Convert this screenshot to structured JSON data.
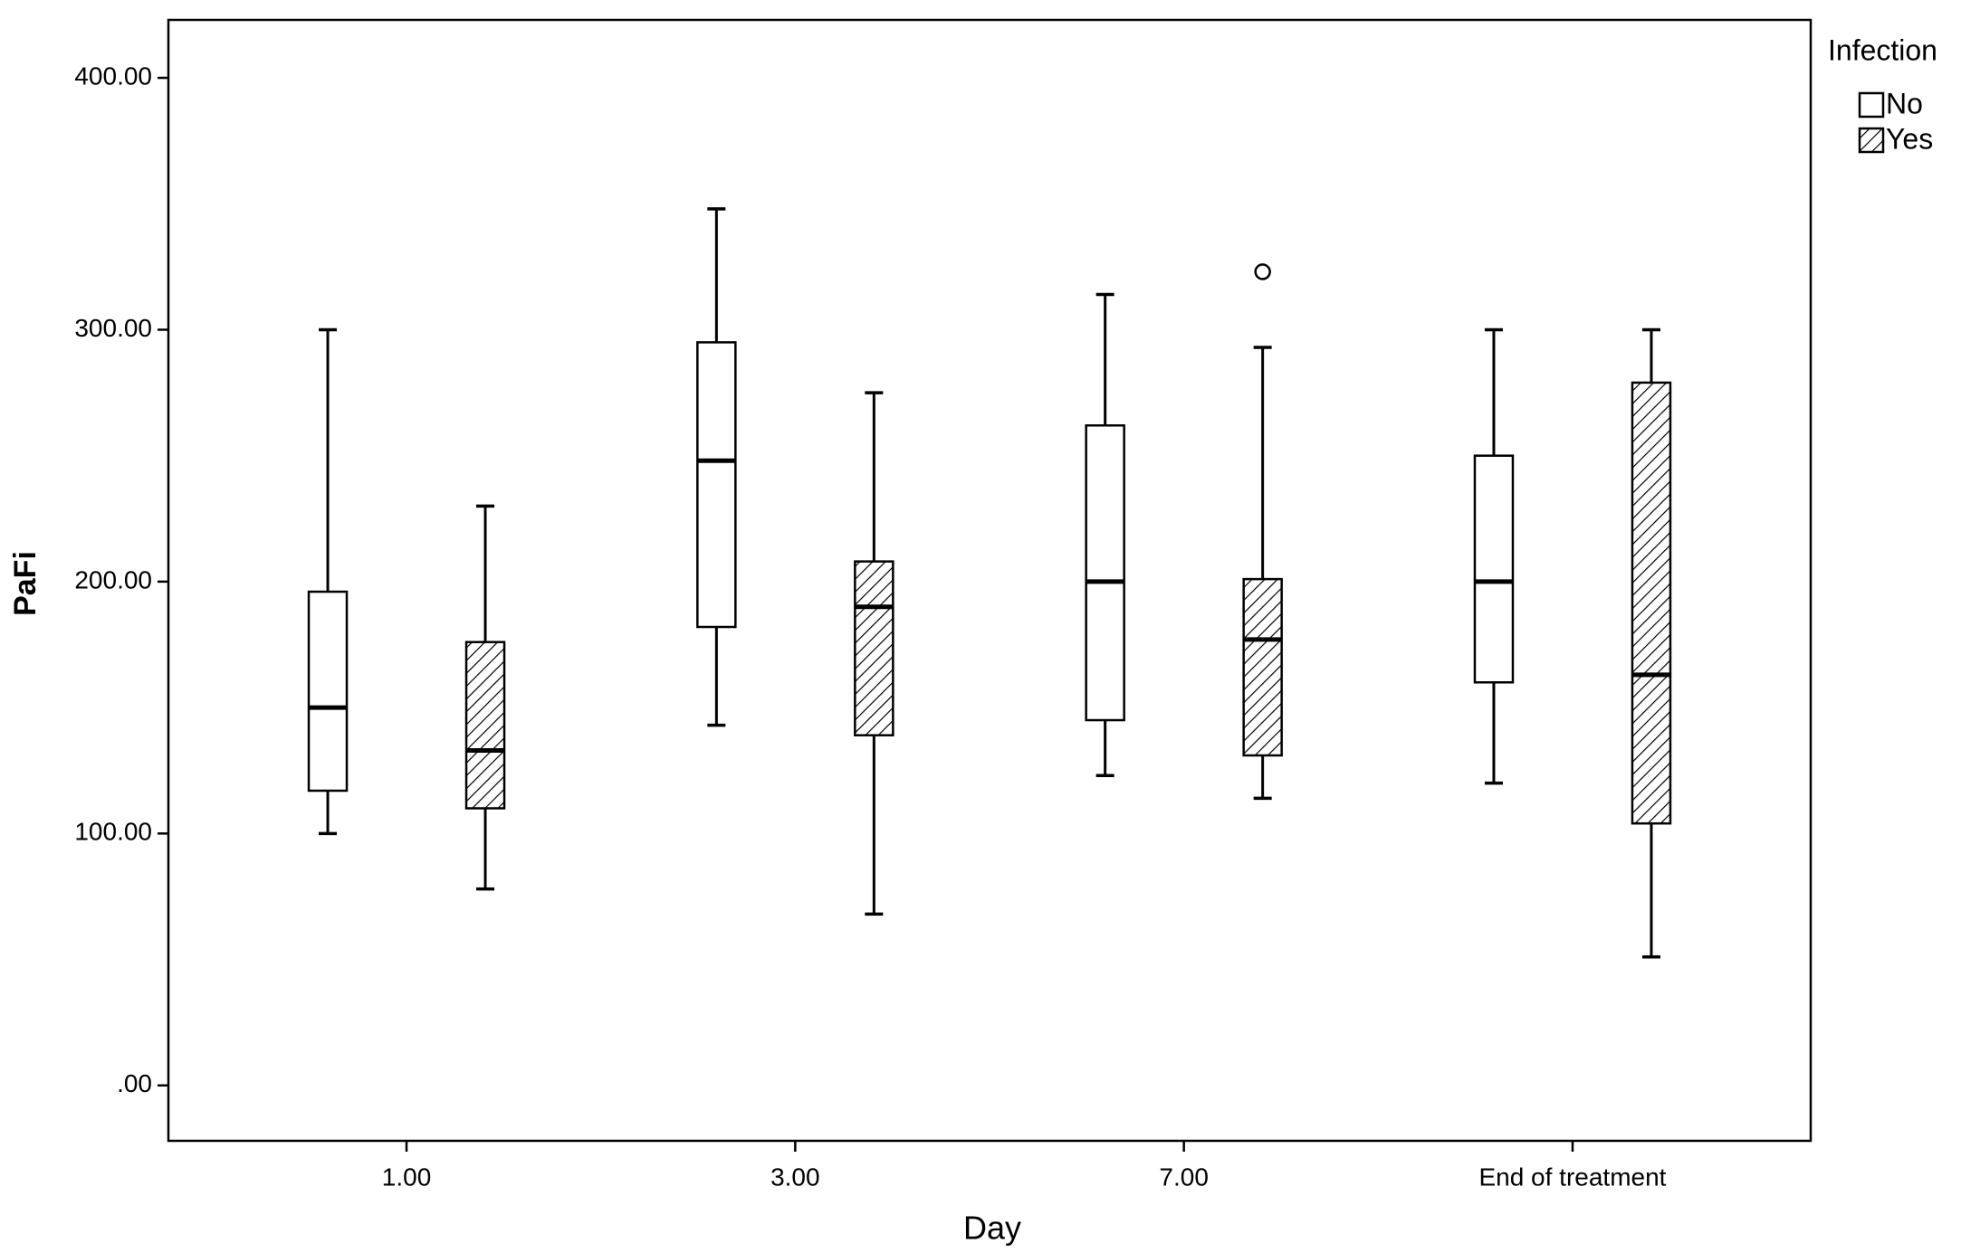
{
  "chart_data": {
    "type": "box",
    "x_label": "Day",
    "y_label": "PaFi",
    "legend_title": "Infection",
    "categories": [
      "1.00",
      "3.00",
      "7.00",
      "End of treatment"
    ],
    "series": [
      {
        "name": "No",
        "color": "#000000",
        "pattern": "none",
        "min": [
          100,
          143,
          123,
          120
        ],
        "q1": [
          117,
          182,
          145,
          160
        ],
        "median": [
          150,
          248,
          200,
          200
        ],
        "q3": [
          196,
          295,
          262,
          250
        ],
        "max": [
          300,
          348,
          314,
          300
        ],
        "outliers": [
          [],
          [],
          [],
          []
        ]
      },
      {
        "name": "Yes",
        "color": "#000000",
        "pattern": "hatch",
        "min": [
          78,
          68,
          114,
          51
        ],
        "q1": [
          110,
          139,
          131,
          104
        ],
        "median": [
          133,
          190,
          177,
          163
        ],
        "q3": [
          176,
          208,
          201,
          279
        ],
        "max": [
          230,
          275,
          293,
          300
        ],
        "outliers": [
          [],
          [],
          [
            323
          ],
          []
        ]
      }
    ],
    "ylim": [
      -22,
      423
    ],
    "yticks": [
      {
        "value": 0,
        "label": ".00"
      },
      {
        "value": 100,
        "label": "100.00"
      },
      {
        "value": 200,
        "label": "200.00"
      },
      {
        "value": 300,
        "label": "300.00"
      },
      {
        "value": 400,
        "label": "400.00"
      }
    ],
    "legend": "outside-top-right"
  }
}
